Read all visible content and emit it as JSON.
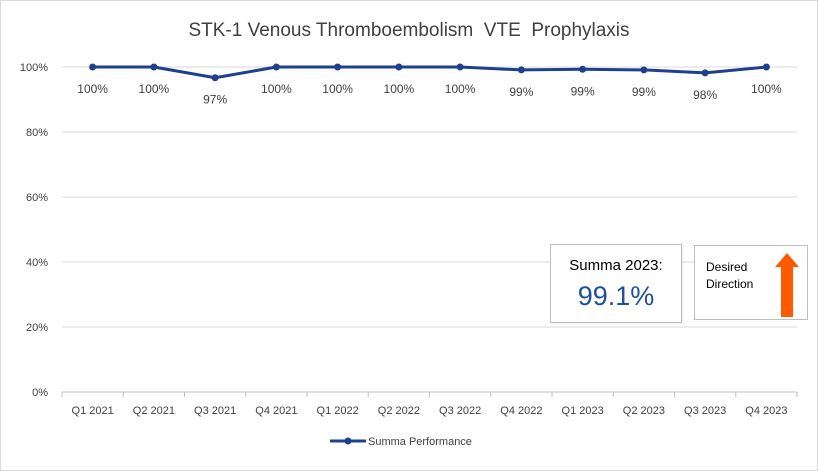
{
  "chart_data": {
    "type": "line",
    "title": "STK-1 Venous Thromboembolism  VTE  Prophylaxis",
    "categories": [
      "Q1 2021",
      "Q2 2021",
      "Q3 2021",
      "Q4 2021",
      "Q1 2022",
      "Q2 2022",
      "Q3 2022",
      "Q4 2022",
      "Q1 2023",
      "Q2 2023",
      "Q3 2023",
      "Q4 2023"
    ],
    "series": [
      {
        "name": "Summa Performance",
        "values": [
          100,
          100,
          96.7,
          100,
          100,
          100,
          100,
          99.1,
          99.3,
          99.1,
          98.2,
          100
        ],
        "labels": [
          "100%",
          "100%",
          "97%",
          "100%",
          "100%",
          "100%",
          "100%",
          "99%",
          "99%",
          "99%",
          "98%",
          "100%"
        ],
        "color": "#1f3f8f"
      }
    ],
    "y_ticks": [
      "0%",
      "20%",
      "40%",
      "60%",
      "80%",
      "100%"
    ],
    "ylim": [
      0,
      100
    ],
    "grid": true,
    "legend_position": "bottom",
    "xlabel": "",
    "ylabel": ""
  },
  "callout": {
    "label": "Summa 2023:",
    "value": "99.1%"
  },
  "direction": {
    "text": "Desired Direction",
    "arrow_color": "#ff5a00",
    "arrow": "up-arrow-icon"
  }
}
